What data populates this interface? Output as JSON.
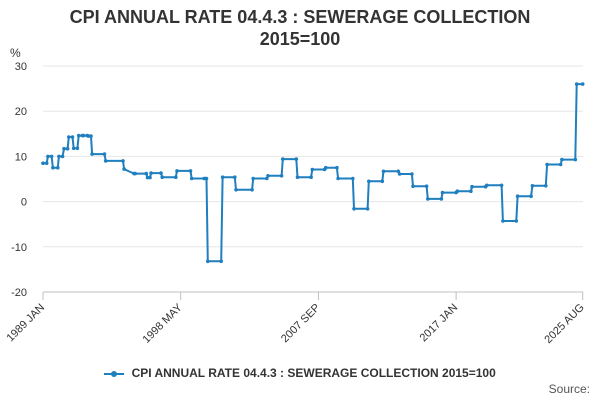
{
  "colors": {
    "series": "#1f7fbf",
    "grid": "#e6e6e6",
    "axis": "#c0c0c0",
    "text": "#333333"
  },
  "source_label": "Source:",
  "chart_data": {
    "type": "line",
    "title": "CPI ANNUAL RATE 04.4.3 : SEWERAGE COLLECTION 2015=100",
    "title_lines": [
      "CPI ANNUAL RATE 04.4.3 : SEWERAGE COLLECTION",
      "2015=100"
    ],
    "ylabel": "%",
    "xlabel": "",
    "ylim": [
      -20,
      30
    ],
    "yticks": [
      30,
      20,
      10,
      0,
      -10,
      -20
    ],
    "xlim": [
      1989.0,
      2025.6
    ],
    "xticks": [
      {
        "label": "1989 JAN",
        "x": 1989.0
      },
      {
        "label": "1998 MAY",
        "x": 1998.33
      },
      {
        "label": "2007 SEP",
        "x": 2007.67
      },
      {
        "label": "2017 JAN",
        "x": 2017.0
      },
      {
        "label": "2025 AUG",
        "x": 2025.58
      }
    ],
    "grid": true,
    "legend_position": "bottom",
    "series": [
      {
        "name": "CPI ANNUAL RATE 04.4.3 : SEWERAGE COLLECTION 2015=100",
        "x": [
          1989.0,
          1989.25,
          1989.33,
          1989.58,
          1989.67,
          1990.0,
          1990.08,
          1990.33,
          1990.42,
          1990.67,
          1990.75,
          1991.0,
          1991.08,
          1991.33,
          1991.42,
          1991.67,
          1991.75,
          1992.0,
          1992.08,
          1992.25,
          1992.33,
          1993.17,
          1993.25,
          1994.42,
          1994.5,
          1995.17,
          1995.25,
          1996.0,
          1996.08,
          1996.25,
          1996.33,
          1997.0,
          1997.08,
          1998.0,
          1998.08,
          1999.0,
          1999.08,
          1999.92,
          2000.0,
          2000.08,
          2000.17,
          2001.08,
          2001.17,
          2002.0,
          2002.08,
          2003.17,
          2003.25,
          2004.17,
          2004.25,
          2005.17,
          2005.25,
          2006.17,
          2006.25,
          2007.17,
          2007.25,
          2008.08,
          2008.17,
          2008.92,
          2009.0,
          2010.0,
          2010.08,
          2011.0,
          2011.08,
          2012.0,
          2012.08,
          2013.08,
          2013.17,
          2014.0,
          2014.08,
          2015.0,
          2015.08,
          2016.0,
          2016.08,
          2017.0,
          2017.08,
          2018.0,
          2018.08,
          2019.0,
          2019.08,
          2020.08,
          2020.17,
          2021.08,
          2021.17,
          2022.08,
          2022.17,
          2023.08,
          2023.17,
          2024.08,
          2024.17,
          2025.08,
          2025.17,
          2025.58
        ],
        "y": [
          8.5,
          8.5,
          10.0,
          10.0,
          7.5,
          7.5,
          10.0,
          10.0,
          11.7,
          11.7,
          14.3,
          14.3,
          11.8,
          11.8,
          14.6,
          14.6,
          14.6,
          14.6,
          14.5,
          14.5,
          10.5,
          10.5,
          9.0,
          9.0,
          7.2,
          6.2,
          6.2,
          6.2,
          5.3,
          5.3,
          6.3,
          6.3,
          5.4,
          5.4,
          6.8,
          6.8,
          5.1,
          5.1,
          5.1,
          5.1,
          -13.2,
          -13.2,
          5.4,
          5.4,
          2.6,
          2.6,
          5.1,
          5.1,
          5.7,
          5.7,
          9.4,
          9.4,
          5.4,
          5.4,
          7.1,
          7.1,
          7.5,
          7.5,
          5.1,
          5.1,
          -1.6,
          -1.6,
          4.5,
          4.5,
          6.7,
          6.7,
          6.1,
          6.1,
          3.4,
          3.4,
          0.6,
          0.6,
          2.0,
          2.0,
          2.3,
          2.3,
          3.3,
          3.3,
          3.6,
          3.6,
          -4.3,
          -4.3,
          1.2,
          1.2,
          3.5,
          3.5,
          8.2,
          8.2,
          9.3,
          9.3,
          26.0,
          26.0
        ]
      }
    ]
  }
}
